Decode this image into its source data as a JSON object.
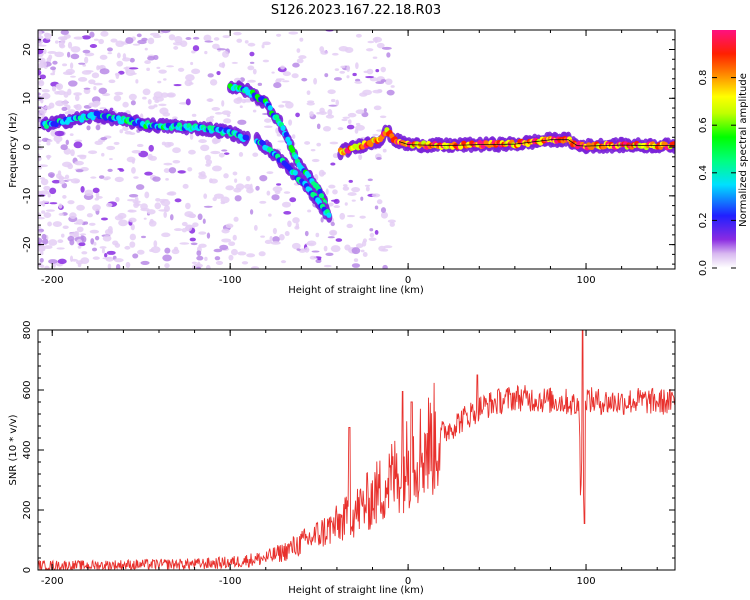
{
  "title": "S126.2023.167.22.18.R03",
  "chart_data": [
    {
      "type": "heatmap",
      "xlabel": "Height of straight line (km)",
      "ylabel": "Frequency (Hz)",
      "xlim": [
        -208,
        150
      ],
      "ylim": [
        -25,
        24
      ],
      "xticks": [
        -200,
        -100,
        0,
        100
      ],
      "yticks": [
        -20,
        -10,
        0,
        10,
        20
      ],
      "colorbar": {
        "label": "Normalized spectral amplitude",
        "range": [
          0,
          1
        ],
        "ticks": [
          0.0,
          0.2,
          0.4,
          0.6,
          0.8
        ],
        "tick_labels": [
          "0.0",
          "0.2",
          "0.4",
          "0.6",
          "0.8"
        ]
      },
      "ridges": [
        {
          "points": [
            [
              -205,
              4.5
            ],
            [
              -190,
              5.5
            ],
            [
              -175,
              6.5
            ],
            [
              -160,
              5.5
            ],
            [
              -145,
              4.5
            ],
            [
              -130,
              4.2
            ],
            [
              -115,
              3.8
            ],
            [
              -100,
              3
            ],
            [
              -90,
              1.6
            ]
          ],
          "amplitude": 0.25
        },
        {
          "points": [
            [
              -100,
              12.5
            ],
            [
              -90,
              11.5
            ],
            [
              -80,
              9
            ],
            [
              -72,
              5
            ],
            [
              -67,
              1
            ],
            [
              -62,
              -3
            ],
            [
              -56,
              -6
            ],
            [
              -50,
              -9
            ],
            [
              -46,
              -12
            ]
          ],
          "amplitude": 0.3
        },
        {
          "points": [
            [
              -85,
              1.5
            ],
            [
              -75,
              -1.5
            ],
            [
              -65,
              -5
            ],
            [
              -55,
              -9
            ],
            [
              -47,
              -13
            ],
            [
              -44,
              -14
            ]
          ],
          "amplitude": 0.22
        },
        {
          "points": [
            [
              -38,
              -1
            ],
            [
              -25,
              0.5
            ],
            [
              -15,
              1.5
            ],
            [
              -12,
              3.5
            ],
            [
              -8,
              1.5
            ],
            [
              0,
              0.5
            ],
            [
              20,
              0.3
            ],
            [
              40,
              0.5
            ],
            [
              60,
              0.6
            ],
            [
              80,
              1.5
            ],
            [
              90,
              1.5
            ],
            [
              95,
              0.3
            ],
            [
              100,
              0.2
            ],
            [
              120,
              0.4
            ],
            [
              140,
              0.3
            ],
            [
              150,
              0.3
            ]
          ],
          "amplitude": 0.75
        }
      ]
    },
    {
      "type": "line",
      "xlabel": "Height of straight line (km)",
      "ylabel": "SNR (10 * v/v)",
      "xlim": [
        -208,
        150
      ],
      "ylim": [
        0,
        800
      ],
      "xticks": [
        -200,
        -100,
        0,
        100
      ],
      "yticks": [
        0,
        200,
        400,
        600,
        800
      ],
      "color": "#e8302c",
      "series": [
        {
          "x": [
            -208,
            -180,
            -150,
            -120,
            -100,
            -80,
            -70,
            -60,
            -50,
            -40,
            -30,
            -20,
            -10,
            0,
            10,
            20,
            30,
            40,
            50,
            60,
            70,
            80,
            90,
            96,
            98,
            100,
            102,
            110,
            120,
            130,
            140,
            150
          ],
          "values": [
            15,
            15,
            18,
            20,
            25,
            40,
            60,
            90,
            120,
            150,
            190,
            240,
            300,
            360,
            410,
            460,
            500,
            540,
            560,
            575,
            570,
            565,
            560,
            540,
            300,
            580,
            565,
            560,
            560,
            565,
            560,
            560
          ]
        }
      ],
      "spikes": [
        {
          "x": -33,
          "y": 475
        },
        {
          "x": -3,
          "y": 595
        },
        {
          "x": 2,
          "y": 560
        },
        {
          "x": 39,
          "y": 650
        },
        {
          "x": 98,
          "y": 815
        },
        {
          "x": 99,
          "y": 155
        }
      ]
    }
  ]
}
